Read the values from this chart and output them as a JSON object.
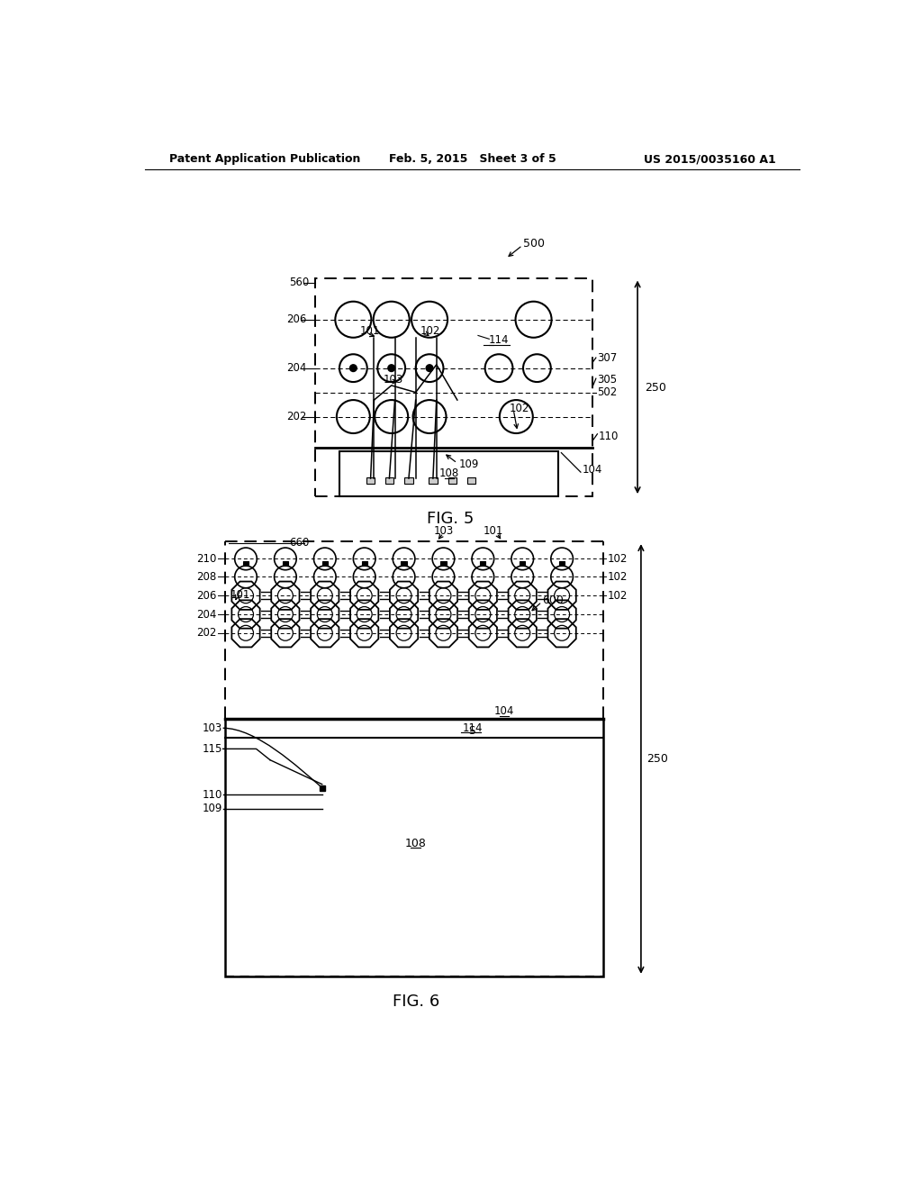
{
  "bg_color": "#ffffff",
  "header_left": "Patent Application Publication",
  "header_mid": "Feb. 5, 2015   Sheet 3 of 5",
  "header_right": "US 2015/0035160 A1",
  "fig5_label": "FIG. 5",
  "fig6_label": "FIG. 6"
}
